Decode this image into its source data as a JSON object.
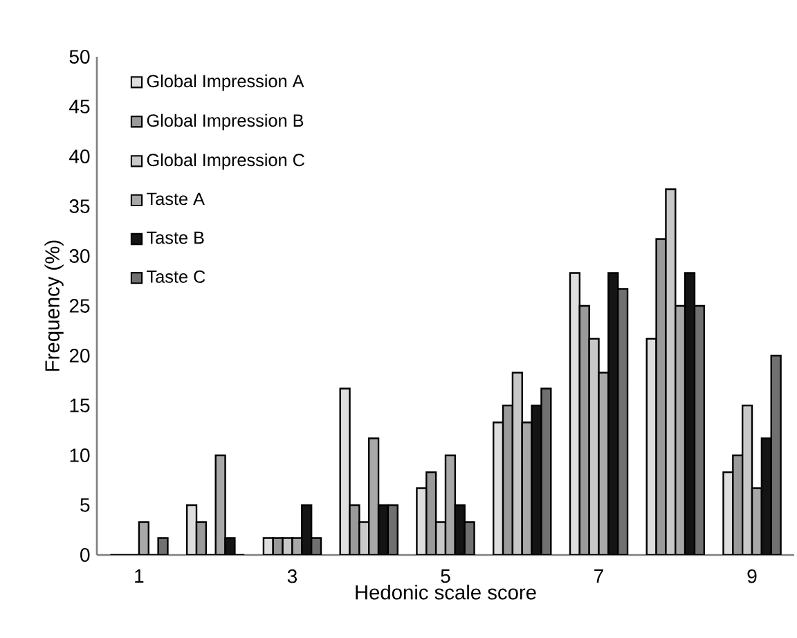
{
  "chart_data": {
    "type": "bar",
    "xlabel": "Hedonic scale score",
    "ylabel": "Frequency (%)",
    "categories": [
      "1",
      null,
      "3",
      null,
      "5",
      null,
      "7",
      null,
      "9"
    ],
    "series": [
      {
        "name": "Global Impression A",
        "color": "#dedede",
        "values": [
          0,
          5,
          1.7,
          16.7,
          6.7,
          13.3,
          28.3,
          21.7,
          8.3
        ]
      },
      {
        "name": "Global Impression B",
        "color": "#9a9a9a",
        "values": [
          0,
          3.3,
          1.7,
          5,
          8.3,
          15,
          25,
          31.7,
          10
        ]
      },
      {
        "name": "Global Impression C",
        "color": "#c8c8c8",
        "values": [
          0,
          0,
          1.7,
          3.3,
          3.3,
          18.3,
          21.7,
          36.7,
          15
        ]
      },
      {
        "name": "Taste A",
        "color": "#a8a8a8",
        "values": [
          3.3,
          10,
          1.7,
          11.7,
          10,
          13.3,
          18.3,
          25,
          6.7
        ]
      },
      {
        "name": "Taste B",
        "color": "#141414",
        "values": [
          0,
          1.7,
          5,
          5,
          5,
          15,
          28.3,
          28.3,
          11.7
        ]
      },
      {
        "name": "Taste C",
        "color": "#707070",
        "values": [
          1.7,
          0,
          1.7,
          5,
          3.3,
          16.7,
          26.7,
          25,
          20
        ]
      }
    ],
    "ylim": [
      0,
      50
    ],
    "yticks": [
      0,
      5,
      10,
      15,
      20,
      25,
      30,
      35,
      40,
      45,
      50
    ],
    "grid": false,
    "legend": "top left"
  }
}
